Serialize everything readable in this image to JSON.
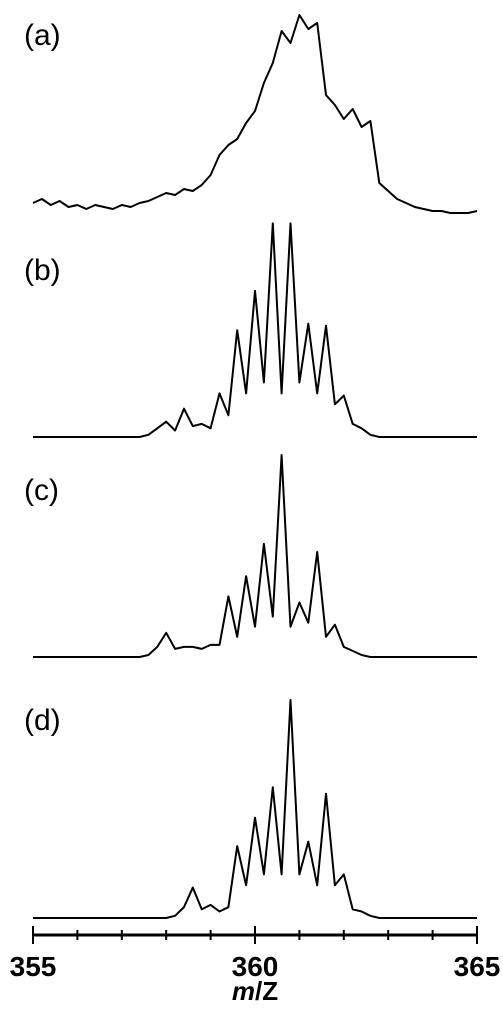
{
  "chart_data": [
    {
      "type": "line",
      "panel_label": "(a)",
      "x": [
        355.0,
        355.2,
        355.4,
        355.6,
        355.8,
        356.0,
        356.2,
        356.4,
        356.6,
        356.8,
        357.0,
        357.2,
        357.4,
        357.6,
        357.8,
        358.0,
        358.2,
        358.4,
        358.6,
        358.8,
        359.0,
        359.2,
        359.4,
        359.6,
        359.8,
        360.0,
        360.2,
        360.4,
        360.6,
        360.8,
        361.0,
        361.2,
        361.4,
        361.6,
        361.8,
        362.0,
        362.2,
        362.4,
        362.6,
        362.8,
        363.0,
        363.2,
        363.4,
        363.6,
        363.8,
        364.0,
        364.2,
        364.4,
        364.6,
        364.8,
        365.0
      ],
      "values": [
        0.06,
        0.08,
        0.05,
        0.07,
        0.04,
        0.05,
        0.03,
        0.05,
        0.04,
        0.03,
        0.05,
        0.04,
        0.06,
        0.07,
        0.09,
        0.11,
        0.1,
        0.13,
        0.12,
        0.15,
        0.2,
        0.3,
        0.35,
        0.38,
        0.46,
        0.52,
        0.66,
        0.76,
        0.92,
        0.86,
        1.0,
        0.93,
        0.96,
        0.6,
        0.55,
        0.48,
        0.53,
        0.44,
        0.47,
        0.16,
        0.12,
        0.08,
        0.06,
        0.04,
        0.03,
        0.02,
        0.02,
        0.01,
        0.01,
        0.01,
        0.02
      ],
      "ylim": [
        0,
        1
      ]
    },
    {
      "type": "line",
      "panel_label": "(b)",
      "x": [
        355.0,
        355.2,
        355.4,
        355.6,
        355.8,
        356.0,
        356.2,
        356.4,
        356.6,
        356.8,
        357.0,
        357.2,
        357.4,
        357.6,
        357.8,
        358.0,
        358.2,
        358.4,
        358.6,
        358.8,
        359.0,
        359.2,
        359.4,
        359.6,
        359.8,
        360.0,
        360.2,
        360.4,
        360.6,
        360.8,
        361.0,
        361.2,
        361.4,
        361.6,
        361.8,
        362.0,
        362.2,
        362.4,
        362.6,
        362.8,
        363.0,
        363.2,
        363.4,
        363.6,
        363.8,
        364.0,
        364.2,
        364.4,
        364.6,
        364.8,
        365.0
      ],
      "values": [
        0,
        0,
        0,
        0,
        0,
        0,
        0,
        0,
        0,
        0,
        0,
        0,
        0,
        0.01,
        0.04,
        0.07,
        0.03,
        0.13,
        0.05,
        0.06,
        0.04,
        0.2,
        0.1,
        0.49,
        0.2,
        0.67,
        0.25,
        0.98,
        0.2,
        0.98,
        0.25,
        0.52,
        0.2,
        0.51,
        0.15,
        0.19,
        0.06,
        0.04,
        0.01,
        0,
        0,
        0,
        0,
        0,
        0,
        0,
        0,
        0,
        0,
        0,
        0
      ],
      "ylim": [
        0,
        1
      ]
    },
    {
      "type": "line",
      "panel_label": "(c)",
      "x": [
        355.0,
        355.2,
        355.4,
        355.6,
        355.8,
        356.0,
        356.2,
        356.4,
        356.6,
        356.8,
        357.0,
        357.2,
        357.4,
        357.6,
        357.8,
        358.0,
        358.2,
        358.4,
        358.6,
        358.8,
        359.0,
        359.2,
        359.4,
        359.6,
        359.8,
        360.0,
        360.2,
        360.4,
        360.6,
        360.8,
        361.0,
        361.2,
        361.4,
        361.6,
        361.8,
        362.0,
        362.2,
        362.4,
        362.6,
        362.8,
        363.0,
        363.2,
        363.4,
        363.6,
        363.8,
        364.0,
        364.2,
        364.4,
        364.6,
        364.8,
        365.0
      ],
      "values": [
        0,
        0,
        0,
        0,
        0,
        0,
        0,
        0,
        0,
        0,
        0,
        0,
        0,
        0.01,
        0.05,
        0.12,
        0.04,
        0.05,
        0.05,
        0.04,
        0.06,
        0.06,
        0.3,
        0.1,
        0.4,
        0.15,
        0.56,
        0.2,
        1.0,
        0.15,
        0.27,
        0.17,
        0.52,
        0.1,
        0.16,
        0.05,
        0.03,
        0.01,
        0,
        0,
        0,
        0,
        0,
        0,
        0,
        0,
        0,
        0,
        0,
        0,
        0
      ],
      "ylim": [
        0,
        1
      ]
    },
    {
      "type": "line",
      "panel_label": "(d)",
      "x": [
        355.0,
        355.2,
        355.4,
        355.6,
        355.8,
        356.0,
        356.2,
        356.4,
        356.6,
        356.8,
        357.0,
        357.2,
        357.4,
        357.6,
        357.8,
        358.0,
        358.2,
        358.4,
        358.6,
        358.8,
        359.0,
        359.2,
        359.4,
        359.6,
        359.8,
        360.0,
        360.2,
        360.4,
        360.6,
        360.8,
        361.0,
        361.2,
        361.4,
        361.6,
        361.8,
        362.0,
        362.2,
        362.4,
        362.6,
        362.8,
        363.0,
        363.2,
        363.4,
        363.6,
        363.8,
        364.0,
        364.2,
        364.4,
        364.6,
        364.8,
        365.0
      ],
      "values": [
        0,
        0,
        0,
        0,
        0,
        0,
        0,
        0,
        0,
        0,
        0,
        0,
        0,
        0,
        0,
        0,
        0.01,
        0.05,
        0.14,
        0.04,
        0.06,
        0.03,
        0.05,
        0.33,
        0.15,
        0.46,
        0.2,
        0.6,
        0.2,
        1.0,
        0.2,
        0.35,
        0.15,
        0.57,
        0.15,
        0.2,
        0.04,
        0.03,
        0.01,
        0,
        0,
        0,
        0,
        0,
        0,
        0,
        0,
        0,
        0,
        0,
        0
      ],
      "ylim": [
        0,
        1
      ]
    }
  ],
  "x_axis": {
    "label_italic": "m",
    "label_rest": "/Z",
    "xlim": [
      355,
      365
    ],
    "major_ticks": [
      355,
      360,
      365
    ],
    "major_tick_labels": [
      "355",
      "360",
      "365"
    ],
    "minor_tick_step": 1
  }
}
